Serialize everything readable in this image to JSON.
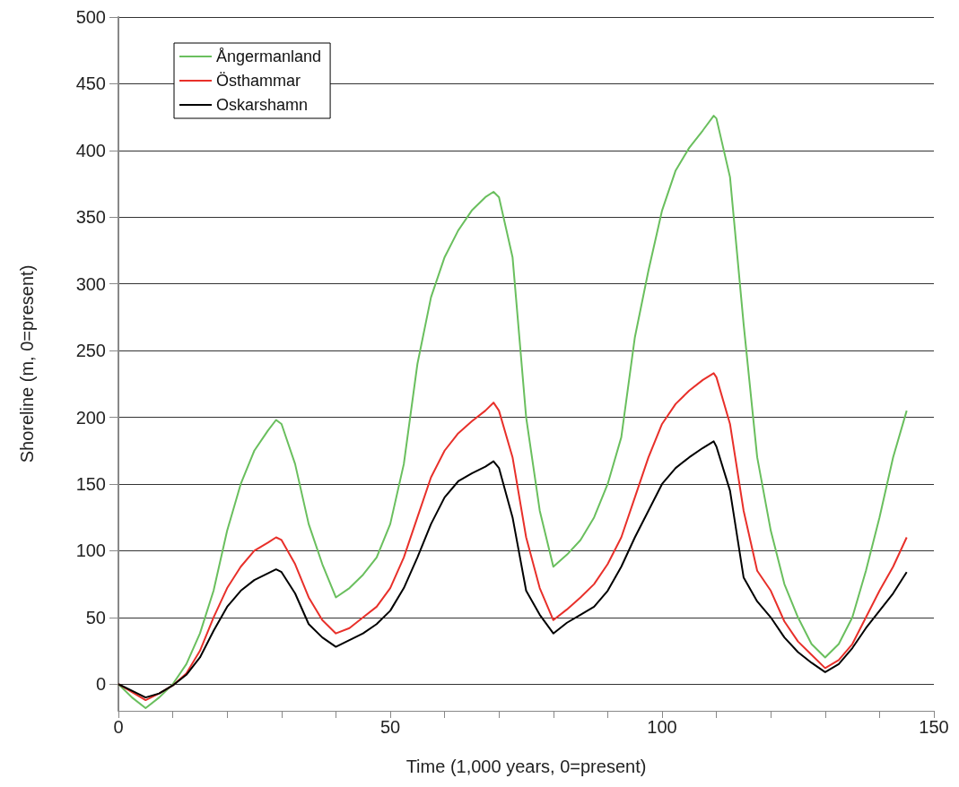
{
  "chart_data": {
    "type": "line",
    "xlabel": "Time (1,000 years, 0=present)",
    "ylabel": "Shoreline (m, 0=present)",
    "x": [
      0,
      2.5,
      5,
      7.5,
      10,
      12.5,
      15,
      17.5,
      20,
      22.5,
      25,
      27.5,
      29,
      30,
      32.5,
      35,
      37.5,
      40,
      42.5,
      45,
      47.5,
      50,
      52.5,
      55,
      57.5,
      60,
      62.5,
      65,
      67.5,
      69,
      70,
      72.5,
      75,
      77.5,
      80,
      82.5,
      85,
      87.5,
      90,
      92.5,
      95,
      97.5,
      100,
      102.5,
      105,
      107.5,
      109.5,
      110,
      112.5,
      115,
      117.5,
      120,
      122.5,
      125,
      127.5,
      130,
      132.5,
      135,
      137.5,
      140,
      142.5,
      145
    ],
    "series": [
      {
        "name": "Ångermanland",
        "color": "#6abf5e",
        "values": [
          0,
          -10,
          -18,
          -10,
          0,
          15,
          38,
          70,
          115,
          150,
          175,
          190,
          198,
          195,
          165,
          120,
          90,
          65,
          72,
          82,
          95,
          120,
          165,
          240,
          290,
          320,
          340,
          355,
          365,
          369,
          365,
          320,
          200,
          130,
          88,
          97,
          108,
          125,
          150,
          185,
          260,
          310,
          355,
          385,
          402,
          415,
          426,
          424,
          380,
          270,
          170,
          115,
          75,
          50,
          30,
          20,
          30,
          50,
          85,
          125,
          170,
          205
        ]
      },
      {
        "name": "Östhammar",
        "color": "#e8302a",
        "values": [
          0,
          -6,
          -12,
          -7,
          -1,
          8,
          25,
          50,
          72,
          88,
          100,
          106,
          110,
          108,
          90,
          65,
          48,
          38,
          42,
          50,
          58,
          72,
          95,
          125,
          155,
          175,
          188,
          197,
          205,
          211,
          205,
          170,
          110,
          72,
          48,
          56,
          65,
          75,
          90,
          110,
          140,
          170,
          195,
          210,
          220,
          228,
          233,
          230,
          195,
          130,
          85,
          70,
          47,
          32,
          22,
          12,
          18,
          30,
          50,
          70,
          88,
          110
        ]
      },
      {
        "name": "Oskarshamn",
        "color": "#000000",
        "values": [
          0,
          -5,
          -10,
          -7,
          -1,
          7,
          20,
          40,
          58,
          70,
          78,
          83,
          86,
          84,
          68,
          45,
          35,
          28,
          33,
          38,
          45,
          55,
          72,
          95,
          120,
          140,
          152,
          158,
          163,
          167,
          162,
          125,
          70,
          52,
          38,
          46,
          52,
          58,
          70,
          88,
          110,
          130,
          150,
          162,
          170,
          177,
          182,
          178,
          145,
          80,
          62,
          50,
          35,
          24,
          16,
          9,
          15,
          27,
          42,
          55,
          68,
          84
        ]
      }
    ],
    "xlim": [
      0,
      150
    ],
    "xticks": [
      0,
      {
        "value": 10,
        "label": null
      },
      {
        "value": 20,
        "label": null
      },
      {
        "value": 30,
        "label": null
      },
      {
        "value": 40,
        "label": null
      },
      50,
      {
        "value": 60,
        "label": null
      },
      {
        "value": 70,
        "label": null
      },
      {
        "value": 80,
        "label": null
      },
      {
        "value": 90,
        "label": null
      },
      100,
      {
        "value": 110,
        "label": null
      },
      {
        "value": 120,
        "label": null
      },
      {
        "value": 130,
        "label": null
      },
      {
        "value": 140,
        "label": null
      },
      150
    ],
    "ylim": [
      -20,
      500
    ],
    "yticks": [
      0,
      50,
      100,
      150,
      200,
      250,
      300,
      350,
      400,
      450,
      500
    ],
    "grid": "y",
    "legend": "top left",
    "marker": "none",
    "line_style": "solid"
  }
}
